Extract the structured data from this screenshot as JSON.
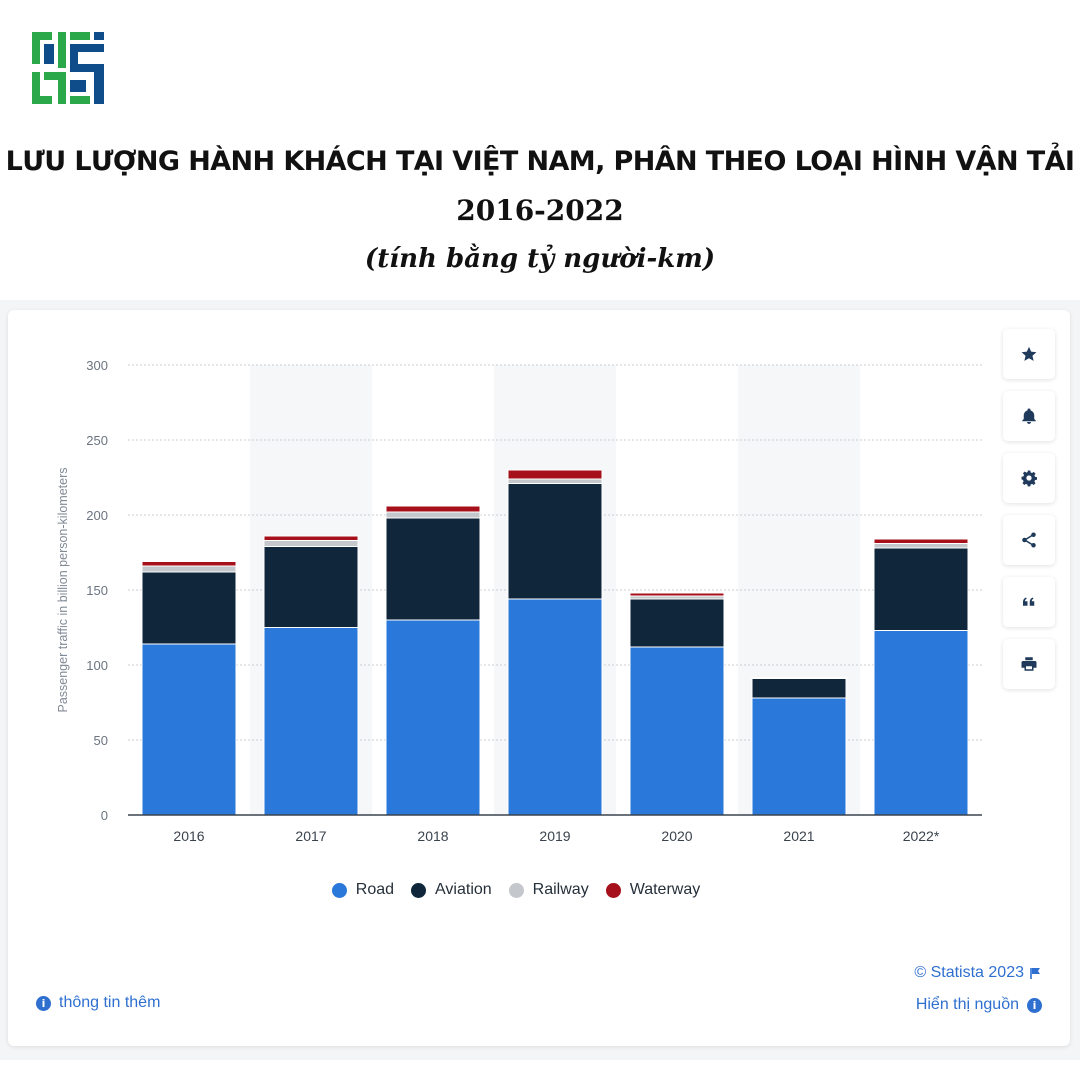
{
  "header": {
    "title": "LƯU LƯỢNG HÀNH KHÁCH TẠI VIỆT NAM, PHÂN THEO LOẠI HÌNH VẬN TẢI",
    "years": "2016-2022",
    "unit": "(tính bằng tỷ người-km)"
  },
  "logo": {
    "icon": "company-logo",
    "colors": {
      "green": "#2aa84a",
      "blue": "#0f4c8a"
    }
  },
  "toolbar": [
    {
      "name": "favorite",
      "icon": "star-icon"
    },
    {
      "name": "notification",
      "icon": "bell-icon"
    },
    {
      "name": "settings",
      "icon": "gear-icon"
    },
    {
      "name": "share",
      "icon": "share-icon"
    },
    {
      "name": "cite",
      "icon": "quote-icon"
    },
    {
      "name": "print",
      "icon": "printer-icon"
    }
  ],
  "footer": {
    "more_info": "thông tin thêm",
    "copyright": "© Statista 2023",
    "show_source": "Hiển thị nguồn"
  },
  "chart_data": {
    "type": "bar",
    "stacked": true,
    "categories": [
      "2016",
      "2017",
      "2018",
      "2019",
      "2020",
      "2021",
      "2022*"
    ],
    "ylabel": "Passenger traffic in billion person-kilometers",
    "xlabel": "",
    "ylim": [
      0,
      300
    ],
    "yticks": [
      0,
      50,
      100,
      150,
      200,
      250,
      300
    ],
    "grid": true,
    "alternate_column_shading": true,
    "legend_position": "bottom-center",
    "series": [
      {
        "name": "Road",
        "color": "#2a78d9",
        "values": [
          114,
          125,
          130,
          144,
          112,
          78,
          123
        ]
      },
      {
        "name": "Aviation",
        "color": "#10263b",
        "values": [
          48,
          54,
          68,
          77,
          32,
          13,
          55
        ]
      },
      {
        "name": "Railway",
        "color": "#c4c7cb",
        "values": [
          4,
          4,
          4,
          3,
          2,
          0.5,
          3
        ]
      },
      {
        "name": "Waterway",
        "color": "#a5101a",
        "values": [
          3,
          3,
          4,
          6,
          2,
          0.3,
          3
        ]
      }
    ]
  }
}
